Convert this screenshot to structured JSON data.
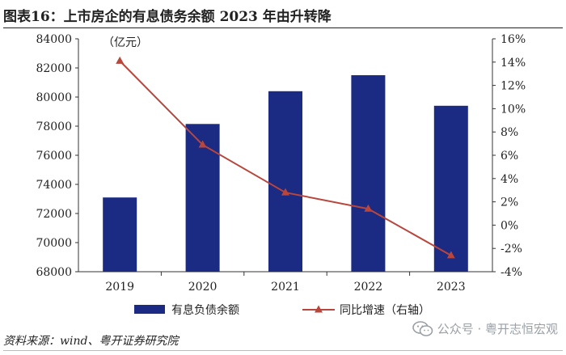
{
  "title": "图表16：上市房企的有息债务余额 2023 年由升转降",
  "source": "资料来源：wind、粤开证券研究院",
  "watermark": "公众号 · 粤开志恒宏观",
  "watermark_icon": "wechat-icon",
  "chart_data": {
    "type": "bar",
    "categories": [
      "2019",
      "2020",
      "2021",
      "2022",
      "2023"
    ],
    "left_unit_label": "（亿元）",
    "left_ylim": [
      68000,
      84000
    ],
    "left_ticks": [
      "68000",
      "70000",
      "72000",
      "74000",
      "76000",
      "78000",
      "80000",
      "82000",
      "84000"
    ],
    "right_ylim": [
      -4,
      16
    ],
    "right_ticks": [
      "-4%",
      "-2%",
      "0%",
      "2%",
      "4%",
      "6%",
      "8%",
      "10%",
      "12%",
      "14%",
      "16%"
    ],
    "series": [
      {
        "name": "有息负债余额",
        "type": "bar",
        "axis": "left",
        "color": "#1b2a83",
        "values": [
          73100,
          78150,
          80400,
          81500,
          79400
        ]
      },
      {
        "name": "同比增速（右轴）",
        "type": "line",
        "axis": "right",
        "color": "#b8463c",
        "marker": "triangle",
        "values": [
          14.1,
          6.9,
          2.8,
          1.4,
          -2.6
        ]
      }
    ],
    "grid": false,
    "legend": "bottom"
  }
}
